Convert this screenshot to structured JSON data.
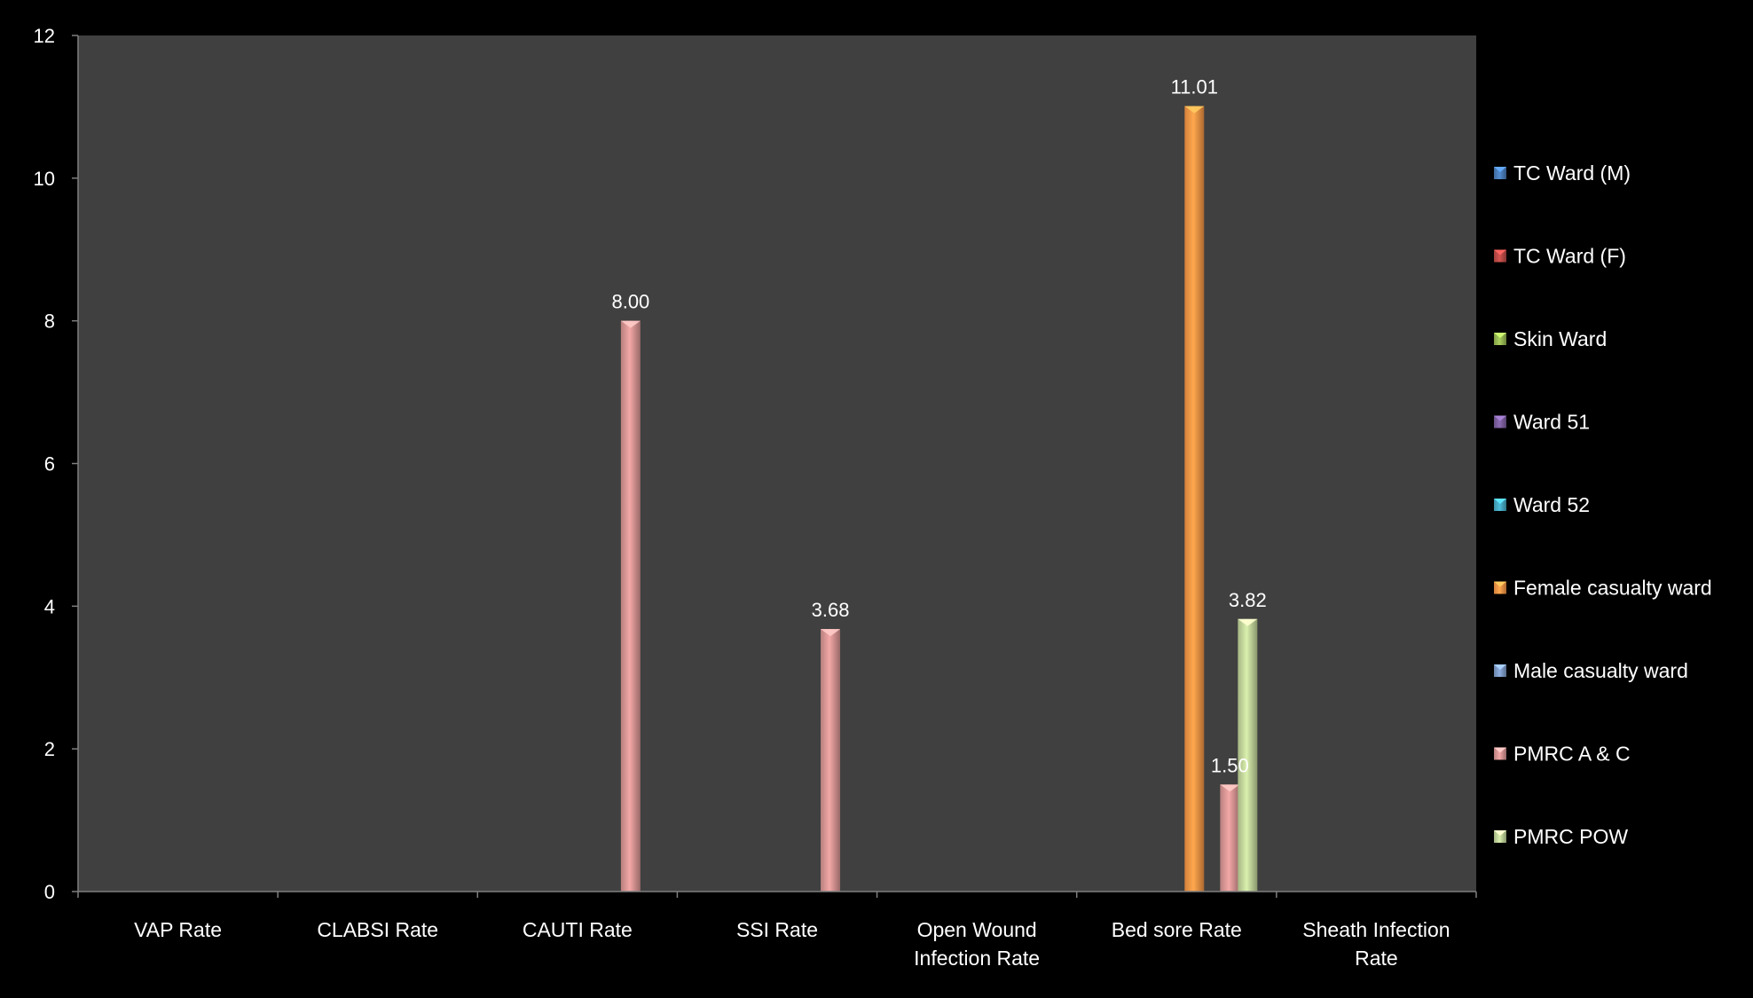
{
  "chart_data": {
    "type": "bar",
    "title": "",
    "xlabel": "",
    "ylabel": "",
    "ylim": [
      0,
      12
    ],
    "yticks": [
      0,
      2,
      4,
      6,
      8,
      10,
      12
    ],
    "categories": [
      "VAP Rate",
      "CLABSI Rate",
      "CAUTI Rate",
      "SSI Rate",
      "Open Wound Infection Rate",
      "Bed sore Rate",
      "Sheath Infection Rate"
    ],
    "category_lines": [
      [
        "VAP Rate"
      ],
      [
        "CLABSI Rate"
      ],
      [
        "CAUTI Rate"
      ],
      [
        "SSI Rate"
      ],
      [
        "Open Wound",
        "Infection Rate"
      ],
      [
        "Bed sore Rate"
      ],
      [
        "Sheath Infection",
        "Rate"
      ]
    ],
    "series": [
      {
        "name": "TC Ward (M)",
        "color": "#4a7ebb",
        "values": [
          0,
          0,
          0,
          0,
          0,
          0,
          0
        ]
      },
      {
        "name": "TC Ward (F)",
        "color": "#be4b48",
        "values": [
          0,
          0,
          0,
          0,
          0,
          0,
          0
        ]
      },
      {
        "name": "Skin Ward",
        "color": "#98b954",
        "values": [
          0,
          0,
          0,
          0,
          0,
          0,
          0
        ]
      },
      {
        "name": "Ward 51",
        "color": "#7d60a0",
        "values": [
          0,
          0,
          0,
          0,
          0,
          0,
          0
        ]
      },
      {
        "name": "Ward 52",
        "color": "#46aac4",
        "values": [
          0,
          0,
          0,
          0,
          0,
          0,
          0
        ]
      },
      {
        "name": "Female casualty ward",
        "color": "#f79646",
        "values": [
          0,
          0,
          0,
          0,
          0,
          11.01,
          0
        ]
      },
      {
        "name": "Male casualty ward",
        "color": "#7e9bc8",
        "values": [
          0,
          0,
          0,
          0,
          0,
          0,
          0
        ]
      },
      {
        "name": "PMRC A & C",
        "color": "#d99694",
        "values": [
          0,
          0,
          8.0,
          3.68,
          0,
          1.5,
          0
        ]
      },
      {
        "name": "PMRC POW",
        "color": "#c3d69b",
        "values": [
          0,
          0,
          0,
          0,
          0,
          3.82,
          0
        ]
      }
    ],
    "data_labels": [
      "8.00",
      "3.68",
      "11.01",
      "1.50",
      "3.82"
    ],
    "grid": false,
    "legend_position": "right",
    "colors": {
      "background": "#000000",
      "plot_background": "#404040",
      "axis": "#7f7f7f",
      "text": "#ffffff"
    }
  }
}
